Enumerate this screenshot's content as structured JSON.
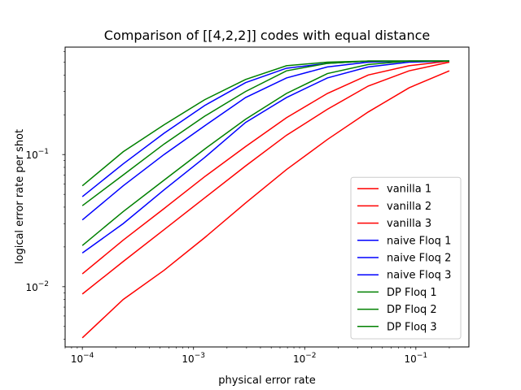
{
  "chart_data": {
    "type": "line",
    "title": "Comparison of [[4,2,2]] codes with equal distance",
    "xlabel": "physical error rate",
    "ylabel": "logical error rate per shot",
    "xscale": "log",
    "yscale": "log",
    "xlim": [
      7e-05,
      0.3
    ],
    "ylim": [
      0.0035,
      0.65
    ],
    "x_ticks": [
      {
        "value": 0.0001,
        "base": "10",
        "exp": "−4"
      },
      {
        "value": 0.001,
        "base": "10",
        "exp": "−3"
      },
      {
        "value": 0.01,
        "base": "10",
        "exp": "−2"
      },
      {
        "value": 0.1,
        "base": "10",
        "exp": "−1"
      }
    ],
    "y_ticks": [
      {
        "value": 0.01,
        "base": "10",
        "exp": "−2"
      },
      {
        "value": 0.1,
        "base": "10",
        "exp": "−1"
      }
    ],
    "legend_position": "lower-right",
    "grid": false,
    "x": [
      0.0001,
      0.000233,
      0.000543,
      0.00126,
      0.00294,
      0.00686,
      0.016,
      0.0373,
      0.0869,
      0.2
    ],
    "series": [
      {
        "name": "vanilla 1",
        "color": "#ff0000",
        "values": [
          0.0041,
          0.008,
          0.0133,
          0.0235,
          0.043,
          0.077,
          0.13,
          0.21,
          0.32,
          0.43
        ]
      },
      {
        "name": "vanilla 2",
        "color": "#ff0000",
        "values": [
          0.0088,
          0.0155,
          0.027,
          0.047,
          0.082,
          0.14,
          0.22,
          0.33,
          0.43,
          0.5
        ]
      },
      {
        "name": "vanilla 3",
        "color": "#ff0000",
        "values": [
          0.0125,
          0.0225,
          0.039,
          0.068,
          0.115,
          0.19,
          0.29,
          0.4,
          0.47,
          0.51
        ]
      },
      {
        "name": "naive Floq 1",
        "color": "#0000ff",
        "values": [
          0.018,
          0.03,
          0.054,
          0.095,
          0.175,
          0.27,
          0.38,
          0.46,
          0.5,
          0.51
        ]
      },
      {
        "name": "naive Floq 2",
        "color": "#0000ff",
        "values": [
          0.032,
          0.058,
          0.1,
          0.165,
          0.27,
          0.38,
          0.46,
          0.5,
          0.51,
          0.51
        ]
      },
      {
        "name": "naive Floq 3",
        "color": "#0000ff",
        "values": [
          0.048,
          0.085,
          0.145,
          0.235,
          0.35,
          0.45,
          0.49,
          0.51,
          0.51,
          0.51
        ]
      },
      {
        "name": "DP Floq 1",
        "color": "#008000",
        "values": [
          0.0205,
          0.037,
          0.064,
          0.11,
          0.185,
          0.29,
          0.41,
          0.48,
          0.51,
          0.51
        ]
      },
      {
        "name": "DP Floq 2",
        "color": "#008000",
        "values": [
          0.041,
          0.07,
          0.12,
          0.195,
          0.3,
          0.43,
          0.49,
          0.51,
          0.51,
          0.51
        ]
      },
      {
        "name": "DP Floq 3",
        "color": "#008000",
        "values": [
          0.058,
          0.105,
          0.168,
          0.26,
          0.37,
          0.47,
          0.5,
          0.51,
          0.51,
          0.51
        ]
      }
    ]
  }
}
